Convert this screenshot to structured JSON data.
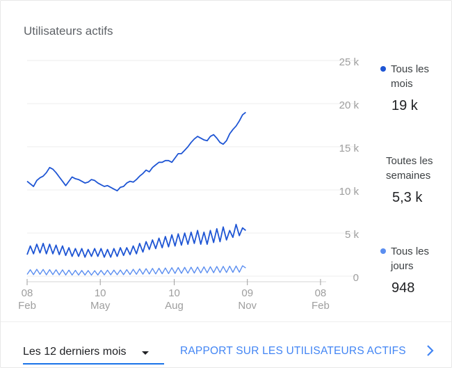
{
  "card": {
    "title": "Utilisateurs actifs"
  },
  "colors": {
    "monthly": "#1e55d4",
    "weekly": "#1e55d4",
    "daily": "#5b8ef0",
    "grid": "#eeeeee",
    "axis_text": "#9e9e9e",
    "accent": "#4285f4",
    "underline": "#1a73e8"
  },
  "legend": {
    "monthly": {
      "label": "Tous les mois",
      "value": "19 k"
    },
    "weekly": {
      "label": "Toutes les semaines",
      "value": "5,3 k"
    },
    "daily": {
      "label": "Tous les jours",
      "value": "948"
    }
  },
  "footer": {
    "range_label": "Les 12 derniers mois",
    "report_link": "RAPPORT SUR LES UTILISATEURS ACTIFS"
  },
  "chart_data": {
    "type": "line",
    "title": "Utilisateurs actifs",
    "xlabel": "",
    "ylabel": "",
    "ylim": [
      0,
      25000
    ],
    "y_ticks": [
      {
        "value": 25000,
        "label": "25 k"
      },
      {
        "value": 20000,
        "label": "20 k"
      },
      {
        "value": 15000,
        "label": "15 k"
      },
      {
        "value": 10000,
        "label": "10 k"
      },
      {
        "value": 5000,
        "label": "5 k"
      },
      {
        "value": 0,
        "label": "0"
      }
    ],
    "x_ticks": [
      {
        "day": 0,
        "day_label": "08",
        "month_label": "Feb"
      },
      {
        "day": 91,
        "day_label": "10",
        "month_label": "May"
      },
      {
        "day": 183,
        "day_label": "10",
        "month_label": "Aug"
      },
      {
        "day": 274,
        "day_label": "09",
        "month_label": "Nov"
      },
      {
        "day": 365,
        "day_label": "08",
        "month_label": "Feb"
      }
    ],
    "x_domain_days": [
      0,
      372
    ],
    "sample_interval_days": 4,
    "series": [
      {
        "name": "Tous les mois",
        "key": "monthly",
        "values": [
          11000,
          10700,
          10400,
          11100,
          11400,
          11600,
          12000,
          12600,
          12400,
          12000,
          11500,
          11000,
          10500,
          11000,
          11500,
          11300,
          11200,
          11000,
          10800,
          10900,
          11200,
          11100,
          10800,
          10600,
          10400,
          10500,
          10300,
          10100,
          9900,
          10300,
          10400,
          10800,
          11000,
          10900,
          11200,
          11600,
          11900,
          12300,
          12100,
          12600,
          12900,
          13200,
          13200,
          13400,
          13400,
          13200,
          13700,
          14200,
          14200,
          14600,
          15000,
          15500,
          15900,
          16200,
          16000,
          15800,
          15700,
          16200,
          16400,
          16000,
          15500,
          15300,
          15700,
          16500,
          17000,
          17400,
          18000,
          18700,
          19000
        ]
      },
      {
        "name": "Toutes les semaines",
        "key": "weekly",
        "values": [
          2500,
          3500,
          2600,
          3700,
          2700,
          3800,
          2600,
          3700,
          2600,
          3600,
          2500,
          3500,
          2400,
          3300,
          2300,
          3200,
          2300,
          3200,
          2200,
          3100,
          2300,
          3200,
          2300,
          3200,
          2200,
          3100,
          2200,
          3200,
          2300,
          3300,
          2400,
          3300,
          2500,
          3500,
          2600,
          3800,
          2800,
          4000,
          3100,
          4200,
          3200,
          4400,
          3300,
          4600,
          3400,
          4800,
          3500,
          4900,
          3600,
          5000,
          3700,
          5100,
          3800,
          5300,
          3700,
          5100,
          3700,
          5300,
          3900,
          5500,
          4000,
          5700,
          4200,
          5300,
          4500,
          6000,
          4700,
          5600,
          5300
        ]
      },
      {
        "name": "Tous les jours",
        "key": "daily",
        "values": [
          200,
          750,
          180,
          800,
          220,
          780,
          160,
          760,
          180,
          740,
          150,
          730,
          140,
          700,
          130,
          680,
          130,
          660,
          140,
          650,
          120,
          640,
          140,
          670,
          150,
          690,
          160,
          700,
          170,
          720,
          180,
          760,
          190,
          800,
          220,
          850,
          230,
          870,
          250,
          900,
          260,
          920,
          280,
          950,
          300,
          980,
          320,
          1000,
          330,
          1020,
          350,
          1040,
          360,
          1060,
          380,
          1080,
          390,
          1100,
          400,
          1120,
          420,
          1140,
          430,
          1160,
          440,
          1180,
          460,
          1200,
          948
        ]
      }
    ]
  }
}
